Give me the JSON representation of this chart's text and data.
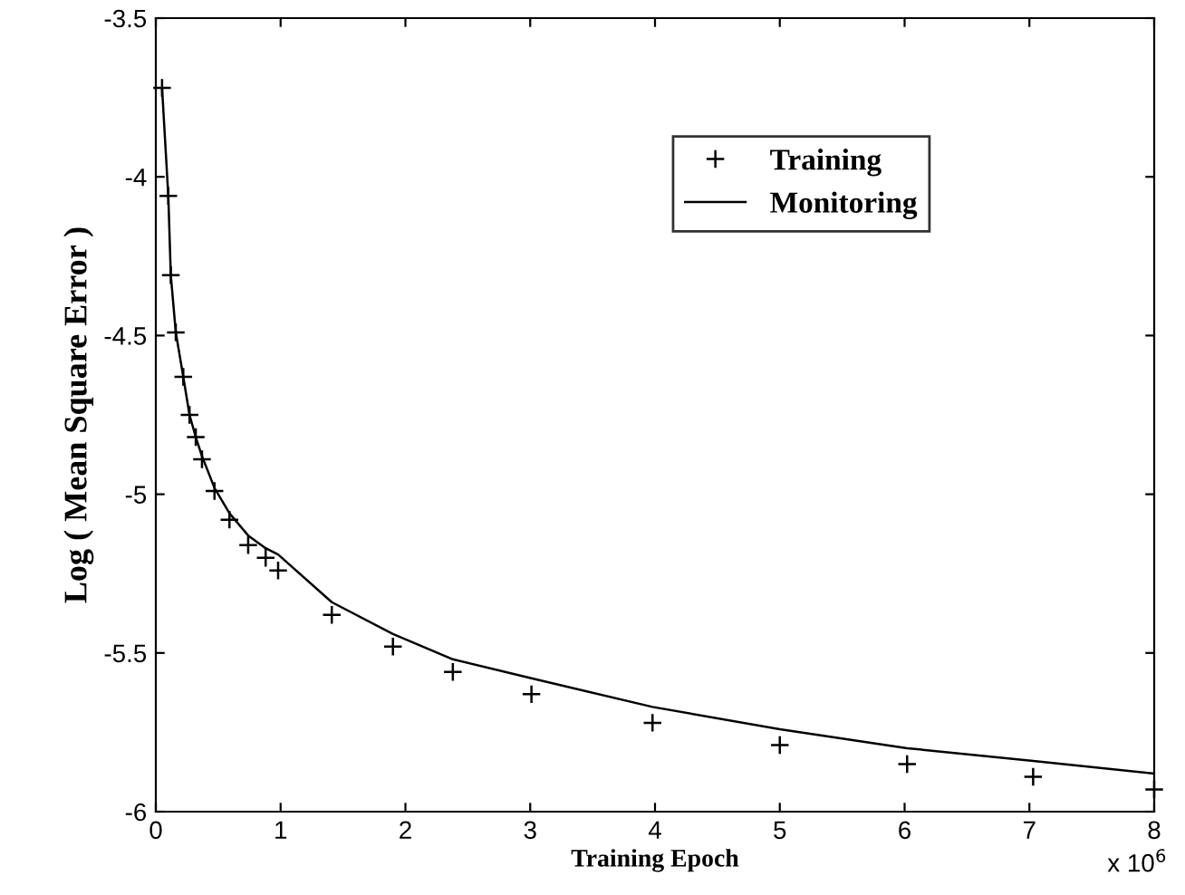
{
  "chart_data": {
    "type": "line",
    "xlabel": "Training Epoch",
    "ylabel": "Log ( Mean Square Error )",
    "annotations": [
      "x 10$^{6}$"
    ],
    "xlim": [
      0,
      8
    ],
    "xticks": [
      0,
      1,
      2,
      3,
      4,
      5,
      6,
      7,
      8
    ],
    "ylim": [
      -6,
      -3.5
    ],
    "yticks": [
      -6,
      -5.5,
      -5,
      -4.5,
      -4,
      -3.5
    ],
    "grid": false,
    "legend": "top right",
    "series": [
      {
        "name": "Training",
        "type": "scatter",
        "marker": "cross",
        "color": "#000000",
        "x": [
          0.05,
          0.1,
          0.12,
          0.16,
          0.22,
          0.27,
          0.32,
          0.37,
          0.47,
          0.59,
          0.74,
          0.88,
          0.98,
          1.41,
          1.9,
          2.38,
          3.01,
          3.98,
          5.0,
          6.02,
          7.03,
          8.0
        ],
        "values": [
          -3.72,
          -4.06,
          -4.31,
          -4.49,
          -4.63,
          -4.75,
          -4.82,
          -4.89,
          -4.99,
          -5.08,
          -5.16,
          -5.2,
          -5.24,
          -5.38,
          -5.48,
          -5.56,
          -5.63,
          -5.72,
          -5.79,
          -5.85,
          -5.89,
          -5.93
        ]
      },
      {
        "name": "Monitoring",
        "line_style": "solid",
        "color": "#000000",
        "x": [
          0.05,
          0.1,
          0.12,
          0.16,
          0.22,
          0.27,
          0.32,
          0.37,
          0.47,
          0.59,
          0.74,
          0.88,
          0.98,
          1.41,
          1.9,
          2.38,
          3.01,
          3.98,
          5.0,
          6.02,
          7.03,
          8.0
        ],
        "values": [
          -3.72,
          -4.06,
          -4.31,
          -4.49,
          -4.63,
          -4.75,
          -4.82,
          -4.88,
          -4.98,
          -5.06,
          -5.13,
          -5.17,
          -5.19,
          -5.34,
          -5.44,
          -5.52,
          -5.58,
          -5.67,
          -5.74,
          -5.8,
          -5.84,
          -5.88
        ]
      }
    ]
  }
}
